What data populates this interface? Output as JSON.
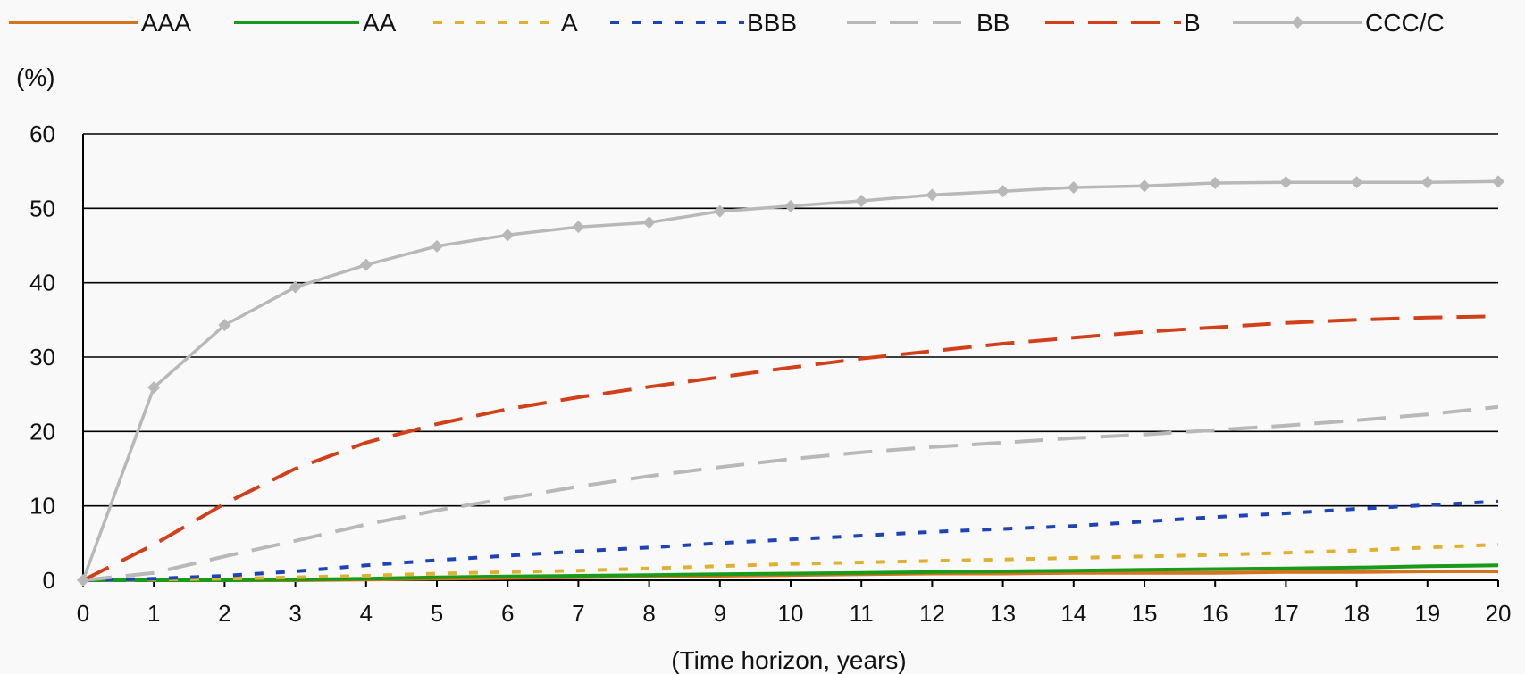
{
  "chart_data": {
    "type": "line",
    "ylabel": "(%)",
    "xlabel": "(Time horizon, years)",
    "xlim": [
      0,
      20
    ],
    "ylim": [
      0,
      60
    ],
    "x_ticks": [
      0,
      1,
      2,
      3,
      4,
      5,
      6,
      7,
      8,
      9,
      10,
      11,
      12,
      13,
      14,
      15,
      16,
      17,
      18,
      19,
      20
    ],
    "y_ticks": [
      0,
      10,
      20,
      30,
      40,
      50,
      60
    ],
    "grid": "horizontal",
    "legend_position": "top",
    "x": [
      0,
      1,
      2,
      3,
      4,
      5,
      6,
      7,
      8,
      9,
      10,
      11,
      12,
      13,
      14,
      15,
      16,
      17,
      18,
      19,
      20
    ],
    "series": [
      {
        "name": "AAA",
        "color": "#d4731f",
        "dash": "solid",
        "marker": "none",
        "values": [
          0,
          0,
          0,
          0,
          0.1,
          0.2,
          0.3,
          0.4,
          0.5,
          0.6,
          0.7,
          0.8,
          0.9,
          0.9,
          1.0,
          1.0,
          1.0,
          1.1,
          1.1,
          1.2,
          1.2
        ]
      },
      {
        "name": "AA",
        "color": "#1a9a1a",
        "dash": "solid",
        "marker": "none",
        "values": [
          0,
          0,
          0,
          0.1,
          0.2,
          0.4,
          0.5,
          0.6,
          0.7,
          0.8,
          0.9,
          1.0,
          1.1,
          1.2,
          1.3,
          1.4,
          1.5,
          1.6,
          1.7,
          1.9,
          2.0
        ]
      },
      {
        "name": "A",
        "color": "#e0b030",
        "dash": "short",
        "marker": "none",
        "values": [
          0,
          0.1,
          0.2,
          0.4,
          0.6,
          0.9,
          1.1,
          1.3,
          1.6,
          1.9,
          2.2,
          2.4,
          2.6,
          2.8,
          3.0,
          3.2,
          3.4,
          3.7,
          4.0,
          4.4,
          4.8
        ]
      },
      {
        "name": "BBB",
        "color": "#1c43b8",
        "dash": "short",
        "marker": "none",
        "values": [
          0,
          0.2,
          0.6,
          1.2,
          2.0,
          2.7,
          3.3,
          3.9,
          4.4,
          5.0,
          5.5,
          6.0,
          6.5,
          6.9,
          7.3,
          7.9,
          8.5,
          9.0,
          9.6,
          10.1,
          10.6
        ]
      },
      {
        "name": "BB",
        "color": "#b8b8b8",
        "dash": "long",
        "marker": "none",
        "values": [
          0,
          1.0,
          3.2,
          5.3,
          7.5,
          9.4,
          11.0,
          12.6,
          14.0,
          15.2,
          16.3,
          17.2,
          17.9,
          18.5,
          19.1,
          19.6,
          20.2,
          20.8,
          21.5,
          22.3,
          23.3
        ]
      },
      {
        "name": "B",
        "color": "#d2401a",
        "dash": "long",
        "marker": "none",
        "values": [
          0,
          4.8,
          10.3,
          15.0,
          18.5,
          21.0,
          23.0,
          24.6,
          26.0,
          27.3,
          28.6,
          29.8,
          30.8,
          31.8,
          32.6,
          33.4,
          34.0,
          34.6,
          35.0,
          35.3,
          35.5
        ]
      },
      {
        "name": "CCC/C",
        "color": "#b8b8b8",
        "dash": "solid",
        "marker": "diamond",
        "values": [
          0,
          25.9,
          34.3,
          39.4,
          42.4,
          44.9,
          46.4,
          47.5,
          48.1,
          49.6,
          50.3,
          51.0,
          51.8,
          52.3,
          52.8,
          53.0,
          53.4,
          53.5,
          53.5,
          53.5,
          53.6
        ]
      }
    ]
  }
}
